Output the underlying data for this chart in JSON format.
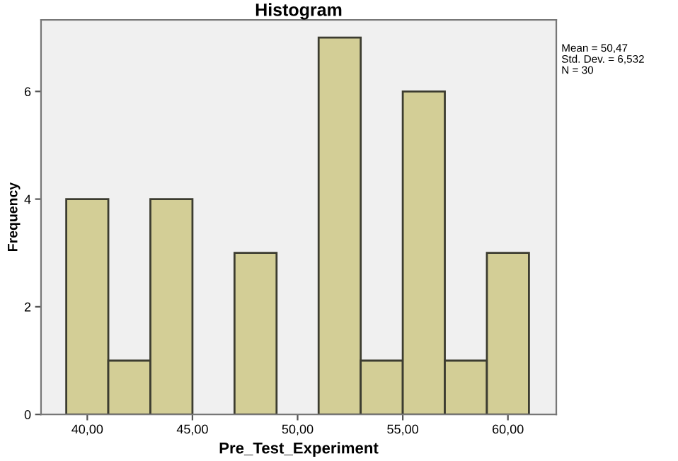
{
  "chart_data": {
    "type": "histogram",
    "title": "Histogram",
    "xlabel": "Pre_Test_Experiment",
    "ylabel": "Frequency",
    "bins": [
      39,
      41,
      43,
      45,
      47,
      49,
      51,
      53,
      55,
      57,
      59,
      61
    ],
    "values": [
      4,
      1,
      4,
      0,
      3,
      0,
      7,
      1,
      6,
      1,
      3
    ],
    "color": "#d3ce96",
    "xlim": [
      37.8,
      62.3
    ],
    "ylim": [
      0,
      7.33
    ],
    "xticks": [
      {
        "value": 40,
        "label": "40,00"
      },
      {
        "value": 45,
        "label": "45,00"
      },
      {
        "value": 50,
        "label": "50,00"
      },
      {
        "value": 55,
        "label": "55,00"
      },
      {
        "value": 60,
        "label": "60,00"
      }
    ],
    "yticks": [
      0,
      2,
      4,
      6
    ],
    "grid": false,
    "legend": false,
    "annotations": [
      "Mean = 50,47",
      "Std. Dev. = 6,532",
      "N = 30"
    ]
  }
}
